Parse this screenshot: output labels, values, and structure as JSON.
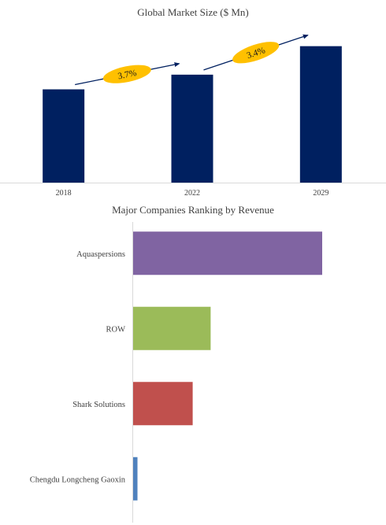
{
  "chart_data": [
    {
      "type": "bar",
      "title": "Global Market Size ($ Mn)",
      "categories": [
        "2018",
        "2022",
        "2029"
      ],
      "values": [
        108,
        125,
        158
      ],
      "ylim": [
        0,
        175
      ],
      "grid": false,
      "color": "#002060",
      "annotations": [
        {
          "text": "3.7%",
          "from": "2018",
          "to": "2022"
        },
        {
          "text": "3.4%",
          "from": "2022",
          "to": "2029"
        }
      ],
      "annotation_color": "#FFC000",
      "arrow_color": "#002060"
    },
    {
      "type": "bar",
      "orientation": "horizontal",
      "title": "Major Companies Ranking by Revenue",
      "categories": [
        "Aquaspersions",
        "ROW",
        "Shark Solutions",
        "Chengdu Longcheng Gaoxin"
      ],
      "values": [
        100,
        41,
        31.5,
        2.3
      ],
      "xlim": [
        0,
        100
      ],
      "colors": [
        "#8064A2",
        "#9BBB59",
        "#C0504D",
        "#4F81BD"
      ],
      "grid": false
    }
  ]
}
